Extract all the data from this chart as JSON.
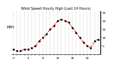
{
  "title": "Wind Speed Hourly High (Last 24 Hours)",
  "ylabel": "MPH",
  "hours": [
    0,
    1,
    2,
    3,
    4,
    5,
    6,
    7,
    8,
    9,
    10,
    11,
    12,
    13,
    14,
    15,
    16,
    17,
    18,
    19,
    20,
    21,
    22,
    23
  ],
  "values": [
    3,
    2,
    2,
    3,
    3,
    4,
    5,
    8,
    10,
    12,
    15,
    17,
    20,
    21,
    20,
    19,
    16,
    13,
    10,
    7,
    5,
    4,
    8,
    9
  ],
  "line_color": "#dd0000",
  "dot_color": "#000000",
  "bg_color": "#ffffff",
  "title_color": "#000000",
  "grid_color": "#999999",
  "ylim": [
    0,
    26
  ],
  "yticks": [
    5,
    10,
    15,
    20,
    25
  ],
  "xtick_every": 4,
  "title_fontsize": 3.5,
  "tick_fontsize": 3.2,
  "ylabel_fontsize": 3.5
}
